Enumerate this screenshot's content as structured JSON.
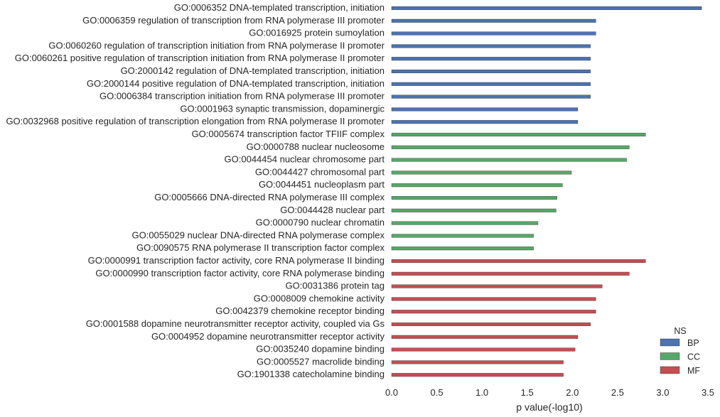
{
  "chart_data": {
    "type": "bar",
    "orientation": "horizontal",
    "xlabel": "p value(-log10)",
    "ylabel": "",
    "xlim": [
      0,
      3.5
    ],
    "xticks": [
      "0.0",
      "0.5",
      "1.0",
      "1.5",
      "2.0",
      "2.5",
      "3.0",
      "3.5"
    ],
    "grid": false,
    "legend": {
      "title": "NS",
      "position": "bottom-right",
      "entries": [
        {
          "label": "BP",
          "color": "#4c72b0"
        },
        {
          "label": "CC",
          "color": "#55a868"
        },
        {
          "label": "MF",
          "color": "#c44e52"
        }
      ]
    },
    "categories": [
      "GO:0006352 DNA-templated transcription, initiation",
      "GO:0006359 regulation of transcription from RNA polymerase III promoter",
      "GO:0016925 protein sumoylation",
      "GO:0060260 regulation of transcription initiation from RNA polymerase II promoter",
      "GO:0060261 positive regulation of transcription initiation from RNA polymerase II promoter",
      "GO:2000142 regulation of DNA-templated transcription, initiation",
      "GO:2000144 positive regulation of DNA-templated transcription, initiation",
      "GO:0006384 transcription initiation from RNA polymerase III promoter",
      "GO:0001963 synaptic transmission, dopaminergic",
      "GO:0032968 positive regulation of transcription elongation from RNA polymerase II promoter",
      "GO:0005674 transcription factor TFIIF complex",
      "GO:0000788 nuclear nucleosome",
      "GO:0044454 nuclear chromosome part",
      "GO:0044427 chromosomal part",
      "GO:0044451 nucleoplasm part",
      "GO:0005666 DNA-directed RNA polymerase III complex",
      "GO:0044428 nuclear part",
      "GO:0000790 nuclear chromatin",
      "GO:0055029 nuclear DNA-directed RNA polymerase complex",
      "GO:0090575 RNA polymerase II transcription factor complex",
      "GO:0000991 transcription factor activity, core RNA polymerase II binding",
      "GO:0000990 transcription factor activity, core RNA polymerase binding",
      "GO:0031386 protein tag",
      "GO:0008009 chemokine activity",
      "GO:0042379 chemokine receptor binding",
      "GO:0001588 dopamine neurotransmitter receptor activity, coupled via Gs",
      "GO:0004952 dopamine neurotransmitter receptor activity",
      "GO:0035240 dopamine binding",
      "GO:0005527 macrolide binding",
      "GO:1901338 catecholamine binding"
    ],
    "groups": [
      "BP",
      "BP",
      "BP",
      "BP",
      "BP",
      "BP",
      "BP",
      "BP",
      "BP",
      "BP",
      "CC",
      "CC",
      "CC",
      "CC",
      "CC",
      "CC",
      "CC",
      "CC",
      "CC",
      "CC",
      "MF",
      "MF",
      "MF",
      "MF",
      "MF",
      "MF",
      "MF",
      "MF",
      "MF",
      "MF"
    ],
    "values": [
      3.43,
      2.26,
      2.26,
      2.2,
      2.2,
      2.2,
      2.2,
      2.2,
      2.06,
      2.06,
      2.81,
      2.63,
      2.6,
      1.99,
      1.89,
      1.83,
      1.82,
      1.62,
      1.57,
      1.57,
      2.81,
      2.63,
      2.33,
      2.26,
      2.26,
      2.2,
      2.06,
      2.03,
      1.9,
      1.9
    ]
  }
}
